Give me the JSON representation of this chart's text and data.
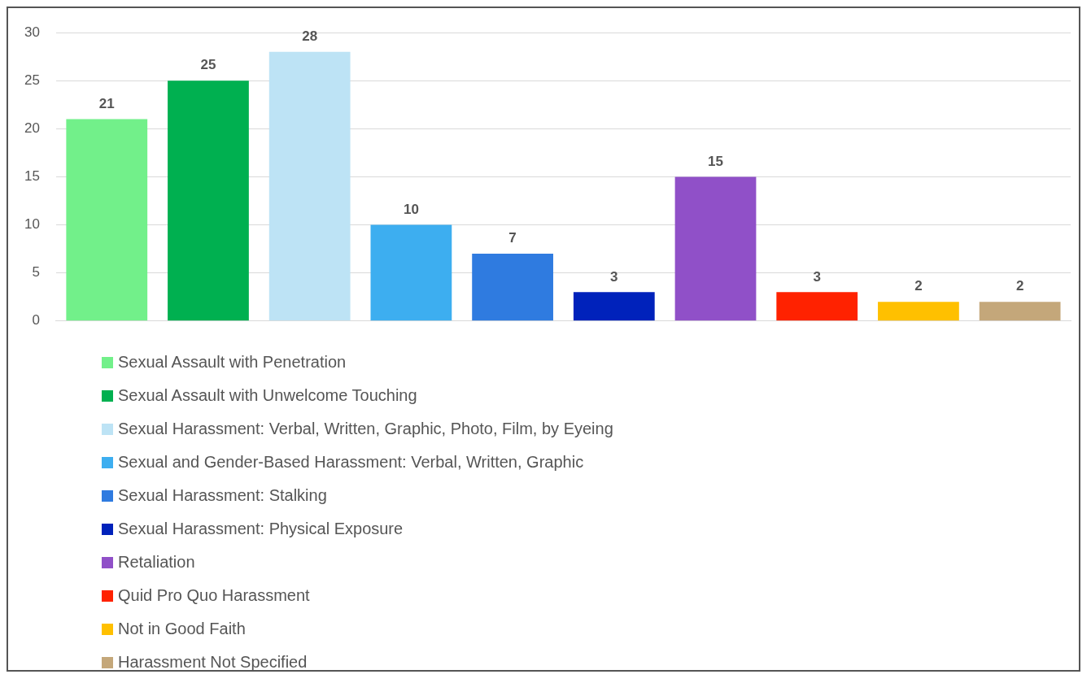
{
  "chart_data": {
    "type": "bar",
    "categories": [
      null,
      null,
      null,
      null,
      null,
      null,
      null,
      null,
      null,
      null
    ],
    "series": [
      {
        "name": "Sexual Assault with Penetration",
        "color": "#72f08a",
        "values": [
          21,
          null,
          null,
          null,
          null,
          null,
          null,
          null,
          null,
          null
        ]
      },
      {
        "name": "Sexual Assault with Unwelcome Touching",
        "color": "#00b050",
        "values": [
          null,
          25,
          null,
          null,
          null,
          null,
          null,
          null,
          null,
          null
        ]
      },
      {
        "name": "Sexual Harassment: Verbal, Written, Graphic, Photo, Film, by Eyeing",
        "color": "#bde3f5",
        "values": [
          null,
          null,
          28,
          null,
          null,
          null,
          null,
          null,
          null,
          null
        ]
      },
      {
        "name": "Sexual and Gender-Based Harassment: Verbal, Written, Graphic",
        "color": "#3daef0",
        "values": [
          null,
          null,
          null,
          10,
          null,
          null,
          null,
          null,
          null,
          null
        ]
      },
      {
        "name": "Sexual Harassment: Stalking",
        "color": "#2f7be0",
        "values": [
          null,
          null,
          null,
          null,
          7,
          null,
          null,
          null,
          null,
          null
        ]
      },
      {
        "name": "Sexual Harassment: Physical Exposure",
        "color": "#0022bb",
        "values": [
          null,
          null,
          null,
          null,
          null,
          3,
          null,
          null,
          null,
          null
        ]
      },
      {
        "name": "Retaliation",
        "color": "#9050c8",
        "values": [
          null,
          null,
          null,
          null,
          null,
          null,
          15,
          null,
          null,
          null
        ]
      },
      {
        "name": "Quid Pro Quo Harassment",
        "color": "#ff2200",
        "values": [
          null,
          null,
          null,
          null,
          null,
          null,
          null,
          3,
          null,
          null
        ]
      },
      {
        "name": "Not in Good Faith",
        "color": "#ffc000",
        "values": [
          null,
          null,
          null,
          null,
          null,
          null,
          null,
          null,
          2,
          null
        ]
      },
      {
        "name": "Harassment Not Specified",
        "color": "#c4a77a",
        "values": [
          null,
          null,
          null,
          null,
          null,
          null,
          null,
          null,
          null,
          2
        ]
      }
    ],
    "ylim": [
      0,
      30
    ],
    "yticks": [
      0,
      5,
      10,
      15,
      20,
      25,
      30
    ],
    "grid": "y",
    "data_labels": true,
    "legend": "bottom"
  }
}
